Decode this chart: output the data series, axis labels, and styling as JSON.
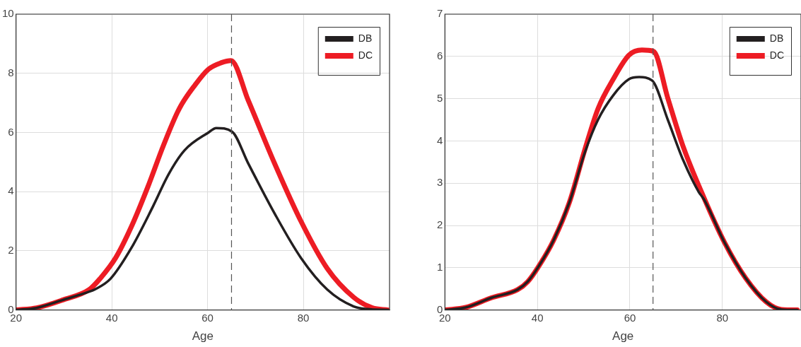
{
  "chart_data": [
    {
      "type": "line",
      "xlabel": "Age",
      "xlim": [
        20,
        98
      ],
      "xticks": [
        20,
        40,
        60,
        80
      ],
      "ylim": [
        0,
        10
      ],
      "yticks": [
        0,
        2,
        4,
        6,
        8,
        10
      ],
      "grid": true,
      "legend": "top right",
      "marker": "none",
      "ref_lines": [
        {
          "axis": "x",
          "value": 65,
          "line_style": "dashed",
          "color": "#555555"
        }
      ],
      "series": [
        {
          "name": "DB",
          "color": "#231f20",
          "x": [
            20,
            24.3,
            29.8,
            35.3,
            36.4,
            39.7,
            44.1,
            48.6,
            51.9,
            55.2,
            60.2,
            61.8,
            65.1,
            68.5,
            74,
            79.5,
            85,
            90.5,
            93.3,
            97.7
          ],
          "values": [
            0,
            0.07,
            0.34,
            0.62,
            0.69,
            1.05,
            2.1,
            3.5,
            4.6,
            5.4,
            6.0,
            6.15,
            6.03,
            4.95,
            3.26,
            1.76,
            0.69,
            0.12,
            0.03,
            0
          ]
        },
        {
          "name": "DC",
          "color": "#ed1c24",
          "x": [
            20,
            24.3,
            29.8,
            35.3,
            37.5,
            40.8,
            44.1,
            47.5,
            50.8,
            54.1,
            57.4,
            60.2,
            62.9,
            64.9,
            68.5,
            74,
            79.5,
            85,
            90.5,
            94.4,
            97.7
          ],
          "values": [
            0,
            0.07,
            0.34,
            0.69,
            1.05,
            1.76,
            2.82,
            4.15,
            5.57,
            6.81,
            7.61,
            8.14,
            8.36,
            8.43,
            7.08,
            4.95,
            3.0,
            1.4,
            0.43,
            0.07,
            0
          ]
        }
      ]
    },
    {
      "type": "line",
      "xlabel": "Age",
      "xlim": [
        20,
        97
      ],
      "xticks": [
        20,
        40,
        60,
        80
      ],
      "ylim": [
        0,
        7
      ],
      "yticks": [
        0,
        1,
        2,
        3,
        4,
        5,
        6,
        7
      ],
      "grid": true,
      "legend": "top right",
      "marker": "none",
      "ref_lines": [
        {
          "axis": "x",
          "value": 65,
          "line_style": "dashed",
          "color": "#555555"
        }
      ],
      "series": [
        {
          "name": "DB",
          "color": "#231f20",
          "x": [
            20,
            24.5,
            30.1,
            35.7,
            37.9,
            40.2,
            43.5,
            46.9,
            50.3,
            53.1,
            56.4,
            59.8,
            62,
            64.8,
            68.2,
            71.5,
            74.9,
            76,
            80.5,
            85,
            89.5,
            92.8,
            96.2
          ],
          "values": [
            0,
            0.06,
            0.29,
            0.48,
            0.67,
            1.02,
            1.65,
            2.54,
            3.74,
            4.5,
            5.08,
            5.46,
            5.51,
            5.43,
            4.5,
            3.55,
            2.79,
            2.62,
            1.59,
            0.76,
            0.19,
            0.01,
            0
          ]
        },
        {
          "name": "DC",
          "color": "#ed1c24",
          "x": [
            20,
            24.5,
            30.1,
            35.7,
            37.9,
            40.2,
            43.5,
            46.9,
            50.3,
            53.1,
            56.4,
            59.8,
            62.6,
            65.1,
            68.2,
            71.5,
            76,
            80.5,
            85,
            89.5,
            92.8,
            96.2
          ],
          "values": [
            0,
            0.06,
            0.29,
            0.48,
            0.67,
            1.02,
            1.65,
            2.54,
            3.81,
            4.76,
            5.46,
            6.03,
            6.15,
            6.12,
            5.01,
            3.87,
            2.66,
            1.59,
            0.76,
            0.19,
            0.01,
            0
          ]
        }
      ]
    }
  ]
}
